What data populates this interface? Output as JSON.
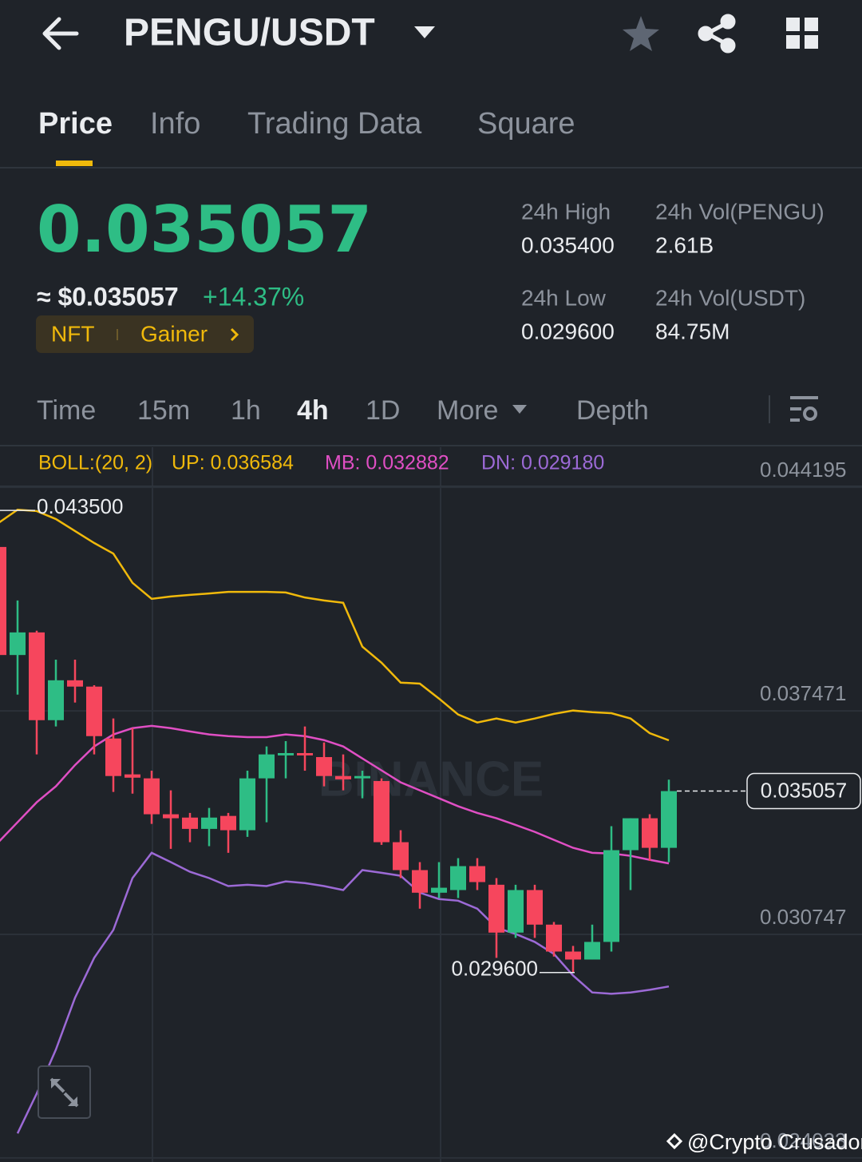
{
  "header": {
    "title": "PENGU/USDT"
  },
  "tabs": [
    "Price",
    "Info",
    "Trading Data",
    "Square"
  ],
  "ticker": {
    "price": "0.035057",
    "fiat": "≈ $0.035057",
    "change": "+14.37%",
    "tags": [
      "NFT",
      "Gainer"
    ]
  },
  "stats": [
    {
      "label": "24h High",
      "value": "0.035400"
    },
    {
      "label": "24h Vol(PENGU)",
      "value": "2.61B"
    },
    {
      "label": "24h Low",
      "value": "0.029600"
    },
    {
      "label": "24h Vol(USDT)",
      "value": "84.75M"
    }
  ],
  "intervals": [
    "Time",
    "15m",
    "1h",
    "4h",
    "1D",
    "More",
    "Depth"
  ],
  "chart_data": {
    "type": "candlestick",
    "indicator": "BOLL:(20, 2)",
    "up_color": "#2ebd85",
    "down_color": "#f6465d",
    "open": [
      0.0424,
      0.03915,
      0.03983,
      0.03719,
      0.03839,
      0.0382,
      0.03664,
      0.03556,
      0.03544,
      0.03436,
      0.03426,
      0.03392,
      0.03431,
      0.03388,
      0.03544,
      0.03613,
      0.0362,
      0.03608,
      0.03551,
      0.03544,
      0.03536,
      0.03352,
      0.03268,
      0.032,
      0.03208,
      0.0328,
      0.03224,
      0.0308,
      0.03208,
      0.03104,
      0.03023,
      0.02999,
      0.03052,
      0.03328,
      0.03424,
      0.03335
    ],
    "high": [
      0.043,
      0.04079,
      0.03988,
      0.03901,
      0.03901,
      0.03824,
      0.03724,
      0.03695,
      0.03567,
      0.03508,
      0.0344,
      0.03455,
      0.0344,
      0.03567,
      0.0364,
      0.03656,
      0.037,
      0.03652,
      0.03616,
      0.03567,
      0.03544,
      0.03388,
      0.03292,
      0.03292,
      0.03304,
      0.03304,
      0.03244,
      0.03224,
      0.03224,
      0.03112,
      0.0304,
      0.03104,
      0.034,
      0.03424,
      0.03436,
      0.0354
    ],
    "low": [
      0.03868,
      0.03796,
      0.03616,
      0.037,
      0.03772,
      0.03616,
      0.03503,
      0.03498,
      0.03407,
      0.03332,
      0.03352,
      0.0334,
      0.0332,
      0.03368,
      0.03412,
      0.03544,
      0.03567,
      0.0352,
      0.03508,
      0.03484,
      0.03344,
      0.03244,
      0.03152,
      0.03184,
      0.03184,
      0.03208,
      0.03004,
      0.03064,
      0.03064,
      0.03008,
      0.0296,
      0.02999,
      0.03023,
      0.03208,
      0.03296,
      0.03292
    ],
    "close": [
      0.03915,
      0.03983,
      0.03719,
      0.03839,
      0.0382,
      0.03671,
      0.03551,
      0.03546,
      0.03436,
      0.03424,
      0.03392,
      0.03426,
      0.03388,
      0.03544,
      0.03616,
      0.0362,
      0.03613,
      0.03551,
      0.03541,
      0.03551,
      0.03352,
      0.03268,
      0.032,
      0.03215,
      0.0328,
      0.03232,
      0.0308,
      0.03208,
      0.03104,
      0.03023,
      0.02999,
      0.03052,
      0.03328,
      0.03424,
      0.03335,
      0.035057
    ],
    "series": [
      {
        "name": "UP: 0.036584",
        "color": "#f0b90b",
        "values": [
          0.04312,
          0.04352,
          0.04348,
          0.04324,
          0.04288,
          0.04252,
          0.0422,
          0.04132,
          0.04084,
          0.04091,
          0.04096,
          0.041,
          0.04105,
          0.04105,
          0.04105,
          0.04103,
          0.04088,
          0.04079,
          0.04072,
          0.0394,
          0.03892,
          0.03832,
          0.03829,
          0.03784,
          0.03736,
          0.03712,
          0.03724,
          0.03712,
          0.03724,
          0.03738,
          0.03748,
          0.03743,
          0.0374,
          0.03724,
          0.0368,
          0.036584
        ]
      },
      {
        "name": "MB: 0.032882",
        "color": "#e04fc4",
        "values": [
          0.03352,
          0.03412,
          0.03472,
          0.0352,
          0.03584,
          0.0364,
          0.03676,
          0.03695,
          0.03702,
          0.03695,
          0.03685,
          0.03676,
          0.03671,
          0.03668,
          0.03668,
          0.03676,
          0.03671,
          0.03659,
          0.0364,
          0.03604,
          0.03568,
          0.03532,
          0.03508,
          0.03484,
          0.0346,
          0.0344,
          0.03424,
          0.03404,
          0.03383,
          0.03359,
          0.03335,
          0.0332,
          0.03318,
          0.03311,
          0.03299,
          0.032882
        ]
      },
      {
        "name": "DN: 0.029180",
        "color": "#9c6ad6",
        "values": [
          null,
          0.02476,
          0.02596,
          0.02728,
          0.02884,
          0.03004,
          0.03088,
          0.03244,
          0.0332,
          0.03292,
          0.03263,
          0.03244,
          0.0322,
          0.03224,
          0.0322,
          0.03234,
          0.03229,
          0.0322,
          0.03208,
          0.03268,
          0.0326,
          0.03251,
          0.032,
          0.03181,
          0.03176,
          0.03152,
          0.03095,
          0.03076,
          0.03052,
          0.03016,
          0.02951,
          0.029,
          0.02896,
          0.029,
          0.02908,
          0.02918
        ]
      }
    ],
    "ylim": [
      0.0239,
      0.0454
    ],
    "yticks": [
      0.044195,
      0.037471,
      0.030747,
      0.024023
    ],
    "grid": true,
    "last_price": 0.035057,
    "max_label": {
      "value": 0.0435,
      "label": "0.043500"
    },
    "min_label": {
      "value": 0.0296,
      "label": "0.029600"
    },
    "watermark": "BINANCE"
  },
  "credit": "@Crypto Crusador"
}
